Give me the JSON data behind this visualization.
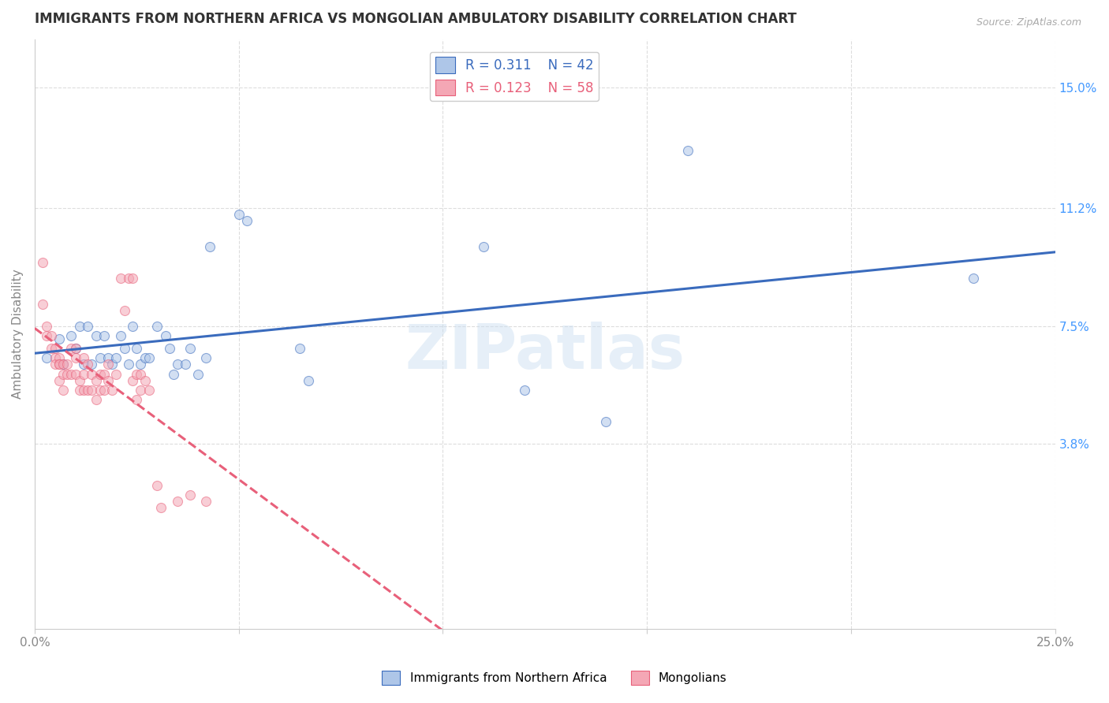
{
  "title": "IMMIGRANTS FROM NORTHERN AFRICA VS MONGOLIAN AMBULATORY DISABILITY CORRELATION CHART",
  "source": "Source: ZipAtlas.com",
  "xlabel": "",
  "ylabel": "Ambulatory Disability",
  "xlim": [
    0.0,
    0.25
  ],
  "ylim": [
    -0.02,
    0.165
  ],
  "xticks": [
    0.0,
    0.05,
    0.1,
    0.15,
    0.2,
    0.25
  ],
  "xticklabels": [
    "0.0%",
    "",
    "",
    "",
    "",
    "25.0%"
  ],
  "ytick_right": [
    0.038,
    0.075,
    0.112,
    0.15
  ],
  "ytick_right_labels": [
    "3.8%",
    "7.5%",
    "11.2%",
    "15.0%"
  ],
  "watermark": "ZIPatlas",
  "legend_r1": "R = 0.311",
  "legend_n1": "N = 42",
  "legend_r2": "R = 0.123",
  "legend_n2": "N = 58",
  "blue_color": "#aec6e8",
  "pink_color": "#f4a7b5",
  "blue_line_color": "#3a6bbd",
  "pink_line_color": "#e8607a",
  "background_color": "#ffffff",
  "grid_color": "#dddddd",
  "scatter_alpha": 0.55,
  "scatter_size": 75,
  "blue_points": [
    [
      0.003,
      0.065
    ],
    [
      0.006,
      0.071
    ],
    [
      0.007,
      0.063
    ],
    [
      0.009,
      0.072
    ],
    [
      0.01,
      0.068
    ],
    [
      0.011,
      0.075
    ],
    [
      0.012,
      0.063
    ],
    [
      0.013,
      0.075
    ],
    [
      0.014,
      0.063
    ],
    [
      0.015,
      0.072
    ],
    [
      0.016,
      0.065
    ],
    [
      0.017,
      0.072
    ],
    [
      0.018,
      0.065
    ],
    [
      0.019,
      0.063
    ],
    [
      0.02,
      0.065
    ],
    [
      0.021,
      0.072
    ],
    [
      0.022,
      0.068
    ],
    [
      0.023,
      0.063
    ],
    [
      0.024,
      0.075
    ],
    [
      0.025,
      0.068
    ],
    [
      0.026,
      0.063
    ],
    [
      0.027,
      0.065
    ],
    [
      0.028,
      0.065
    ],
    [
      0.03,
      0.075
    ],
    [
      0.032,
      0.072
    ],
    [
      0.033,
      0.068
    ],
    [
      0.034,
      0.06
    ],
    [
      0.035,
      0.063
    ],
    [
      0.037,
      0.063
    ],
    [
      0.038,
      0.068
    ],
    [
      0.04,
      0.06
    ],
    [
      0.042,
      0.065
    ],
    [
      0.043,
      0.1
    ],
    [
      0.05,
      0.11
    ],
    [
      0.052,
      0.108
    ],
    [
      0.065,
      0.068
    ],
    [
      0.067,
      0.058
    ],
    [
      0.11,
      0.1
    ],
    [
      0.12,
      0.055
    ],
    [
      0.14,
      0.045
    ],
    [
      0.16,
      0.13
    ],
    [
      0.23,
      0.09
    ]
  ],
  "pink_points": [
    [
      0.002,
      0.095
    ],
    [
      0.002,
      0.082
    ],
    [
      0.003,
      0.075
    ],
    [
      0.003,
      0.072
    ],
    [
      0.004,
      0.072
    ],
    [
      0.004,
      0.068
    ],
    [
      0.005,
      0.068
    ],
    [
      0.005,
      0.065
    ],
    [
      0.005,
      0.063
    ],
    [
      0.006,
      0.065
    ],
    [
      0.006,
      0.063
    ],
    [
      0.006,
      0.058
    ],
    [
      0.006,
      0.063
    ],
    [
      0.007,
      0.063
    ],
    [
      0.007,
      0.06
    ],
    [
      0.007,
      0.055
    ],
    [
      0.008,
      0.063
    ],
    [
      0.008,
      0.06
    ],
    [
      0.009,
      0.068
    ],
    [
      0.009,
      0.06
    ],
    [
      0.01,
      0.068
    ],
    [
      0.01,
      0.065
    ],
    [
      0.01,
      0.06
    ],
    [
      0.011,
      0.058
    ],
    [
      0.011,
      0.055
    ],
    [
      0.012,
      0.065
    ],
    [
      0.012,
      0.06
    ],
    [
      0.012,
      0.055
    ],
    [
      0.013,
      0.063
    ],
    [
      0.013,
      0.055
    ],
    [
      0.014,
      0.06
    ],
    [
      0.014,
      0.055
    ],
    [
      0.015,
      0.058
    ],
    [
      0.015,
      0.052
    ],
    [
      0.016,
      0.06
    ],
    [
      0.016,
      0.055
    ],
    [
      0.017,
      0.06
    ],
    [
      0.017,
      0.055
    ],
    [
      0.018,
      0.063
    ],
    [
      0.018,
      0.058
    ],
    [
      0.019,
      0.055
    ],
    [
      0.02,
      0.06
    ],
    [
      0.021,
      0.09
    ],
    [
      0.022,
      0.08
    ],
    [
      0.023,
      0.09
    ],
    [
      0.024,
      0.09
    ],
    [
      0.024,
      0.058
    ],
    [
      0.025,
      0.06
    ],
    [
      0.025,
      0.052
    ],
    [
      0.026,
      0.06
    ],
    [
      0.026,
      0.055
    ],
    [
      0.027,
      0.058
    ],
    [
      0.028,
      0.055
    ],
    [
      0.03,
      0.025
    ],
    [
      0.031,
      0.018
    ],
    [
      0.035,
      0.02
    ],
    [
      0.038,
      0.022
    ],
    [
      0.042,
      0.02
    ]
  ]
}
